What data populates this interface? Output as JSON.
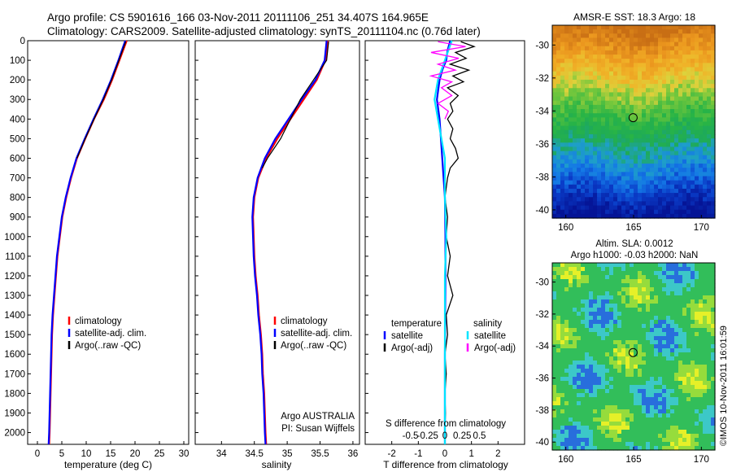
{
  "header": {
    "line1": "Argo profile: CS 5901616_166 03-Nov-2011 20111106_251 34.407S 164.965E",
    "line2": "Climatology: CARS2009. Satellite-adjusted climatology: synTS_20111104.nc (0.76d later)"
  },
  "colors": {
    "climatology": "#ff0000",
    "satellite": "#0000ff",
    "argo": "#000000",
    "salinity_satellite": "#00e5ff",
    "salinity_argo": "#ff00ff"
  },
  "chart_data": [
    {
      "type": "line",
      "id": "temperature",
      "xlabel": "temperature (deg C)",
      "ylabel": "",
      "xlim": [
        -2,
        31
      ],
      "ylim": [
        2060,
        0
      ],
      "xticks": [
        0,
        5,
        10,
        15,
        20,
        25,
        30
      ],
      "yticks": [
        0,
        100,
        200,
        300,
        400,
        500,
        600,
        700,
        800,
        900,
        1000,
        1100,
        1200,
        1300,
        1400,
        1500,
        1600,
        1700,
        1800,
        1900,
        2000
      ],
      "legend": [
        "climatology",
        "satellite-adj. clim.",
        "Argo(..raw -QC)"
      ],
      "legend_position": "bottom-center",
      "series": [
        {
          "name": "climatology",
          "depth": [
            0,
            100,
            200,
            300,
            400,
            500,
            600,
            700,
            800,
            900,
            1000,
            1100,
            1200,
            1300,
            1400,
            1500,
            1600,
            1700,
            1800,
            1900,
            2000,
            2060
          ],
          "values": [
            18.3,
            16.8,
            15.3,
            13.6,
            11.6,
            9.8,
            8.1,
            6.9,
            5.9,
            5.1,
            4.6,
            4.1,
            3.8,
            3.5,
            3.2,
            3.0,
            2.9,
            2.8,
            2.7,
            2.6,
            2.5,
            2.4
          ]
        },
        {
          "name": "satellite-adj. clim.",
          "depth": [
            0,
            100,
            200,
            300,
            400,
            500,
            600,
            700,
            800,
            900,
            1000,
            1100,
            1200,
            1300,
            1400,
            1500,
            1600,
            1700,
            1800,
            1900,
            2000,
            2060
          ],
          "values": [
            18.0,
            16.6,
            15.1,
            13.4,
            11.5,
            9.7,
            8.0,
            6.8,
            5.8,
            5.0,
            4.5,
            4.0,
            3.7,
            3.4,
            3.1,
            2.9,
            2.8,
            2.7,
            2.6,
            2.5,
            2.4,
            2.3
          ]
        },
        {
          "name": "Argo(..raw -QC)",
          "depth": [
            5,
            100,
            200,
            300,
            400,
            500,
            600
          ],
          "values": [
            18.1,
            16.7,
            15.2,
            13.5,
            11.6,
            9.8,
            8.1
          ]
        }
      ]
    },
    {
      "type": "line",
      "id": "salinity",
      "xlabel": "salinity",
      "ylabel": "",
      "xlim": [
        33.6,
        36.1
      ],
      "ylim": [
        2060,
        0
      ],
      "xticks": [
        34,
        34.5,
        35,
        35.5,
        36
      ],
      "legend": [
        "climatology",
        "satellite-adj. clim.",
        "Argo(..raw -QC)"
      ],
      "legend_position": "bottom-center",
      "annotation": [
        "Argo AUSTRALIA",
        "PI: Susan Wijffels"
      ],
      "series": [
        {
          "name": "climatology",
          "depth": [
            0,
            100,
            200,
            300,
            400,
            500,
            600,
            700,
            800,
            900,
            1000,
            1100,
            1200,
            1300,
            1400,
            1500,
            1600,
            1700,
            1800,
            1900,
            2000,
            2060
          ],
          "values": [
            35.62,
            35.58,
            35.45,
            35.25,
            35.05,
            34.85,
            34.68,
            34.56,
            34.5,
            34.48,
            34.49,
            34.5,
            34.52,
            34.55,
            34.57,
            34.6,
            34.62,
            34.63,
            34.65,
            34.66,
            34.67,
            34.68
          ]
        },
        {
          "name": "satellite-adj. clim.",
          "depth": [
            0,
            100,
            200,
            300,
            400,
            500,
            600,
            700,
            800,
            900,
            1000,
            1100,
            1200,
            1300,
            1400,
            1500,
            1600,
            1700,
            1800,
            1900,
            2000,
            2060
          ],
          "values": [
            35.6,
            35.57,
            35.43,
            35.22,
            35.02,
            34.82,
            34.66,
            34.55,
            34.49,
            34.47,
            34.48,
            34.49,
            34.51,
            34.54,
            34.56,
            34.59,
            34.61,
            34.62,
            34.64,
            34.65,
            34.66,
            34.67
          ]
        },
        {
          "name": "Argo(..raw -QC)",
          "depth": [
            5,
            100,
            200,
            300,
            400,
            500,
            600,
            650
          ],
          "values": [
            35.63,
            35.6,
            35.4,
            35.2,
            35.05,
            34.9,
            34.7,
            34.62
          ]
        }
      ]
    },
    {
      "type": "line",
      "id": "difference",
      "xlabel": "T difference from climatology",
      "xlabel_top": "S difference from climatology",
      "xlim": [
        -3,
        3
      ],
      "ylim": [
        2060,
        0
      ],
      "xticks": [
        -2,
        -1,
        0,
        1,
        2
      ],
      "xticks_s": [
        -0.5,
        -0.25,
        0,
        0.25,
        0.5
      ],
      "legend_titles": [
        "temperature",
        "salinity"
      ],
      "legend": [
        "satellite",
        "Argo(-adj)",
        "satellite",
        "Argo(-adj)"
      ],
      "series": [
        {
          "name": "temperature satellite",
          "depth": [
            0,
            50,
            100,
            150,
            200,
            300,
            400,
            500,
            600,
            700,
            800,
            1000,
            1200,
            1400,
            1600,
            1800,
            2000,
            2060
          ],
          "values": [
            0.2,
            0.1,
            0.05,
            -0.1,
            -0.2,
            -0.3,
            -0.2,
            -0.15,
            -0.1,
            -0.05,
            0.0,
            0.02,
            0.02,
            0.01,
            0.0,
            0.0,
            0.0,
            0.0
          ]
        },
        {
          "name": "temperature Argo(-adj)",
          "depth": [
            5,
            30,
            60,
            90,
            120,
            150,
            180,
            210,
            240,
            280,
            320,
            360,
            400,
            450,
            500,
            550,
            600,
            650,
            700,
            800,
            900,
            1000,
            1100,
            1200,
            1300,
            1400,
            1500,
            1600,
            1700,
            1800,
            1900,
            2000
          ],
          "values": [
            0.6,
            1.1,
            0.4,
            0.8,
            0.2,
            0.9,
            0.3,
            0.7,
            0.1,
            0.5,
            0.2,
            0.3,
            0.1,
            0.3,
            0.2,
            0.4,
            0.5,
            0.2,
            0.1,
            0.0,
            0.1,
            0.05,
            0.2,
            0.1,
            0.3,
            0.05,
            0.1,
            0.0,
            0.05,
            0.0,
            0.02,
            0.0
          ]
        },
        {
          "name": "salinity satellite",
          "depth": [
            0,
            50,
            100,
            150,
            200,
            300,
            400,
            500,
            600,
            800,
            1000,
            1200,
            1400,
            1600,
            1800,
            2000,
            2060
          ],
          "values": [
            0.1,
            0.05,
            0.0,
            -0.05,
            -0.1,
            -0.15,
            -0.1,
            -0.05,
            0.0,
            0.0,
            0.02,
            0.0,
            0.0,
            0.0,
            0.0,
            0.0,
            0.0
          ]
        },
        {
          "name": "salinity Argo(-adj)",
          "depth": [
            5,
            30,
            60,
            90,
            120,
            150,
            180,
            210,
            240,
            280,
            320,
            360,
            400
          ],
          "values": [
            -0.1,
            0.3,
            -0.2,
            0.2,
            -0.1,
            0.15,
            -0.2,
            0.1,
            -0.05,
            0.1,
            -0.1,
            0.05,
            0.0
          ]
        }
      ]
    },
    {
      "type": "heatmap",
      "id": "sst_map",
      "title": "AMSR-E SST: 18.3 Argo: 18",
      "xlim": [
        159,
        171
      ],
      "ylim": [
        -40.5,
        -28.8
      ],
      "xticks": [
        160,
        165,
        170
      ],
      "yticks": [
        -30,
        -32,
        -34,
        -36,
        -38,
        -40
      ],
      "marker": {
        "lon": 164.965,
        "lat": -34.407
      }
    },
    {
      "type": "heatmap",
      "id": "sla_map",
      "title": "Altim. SLA: 0.0012",
      "subtitle": "Argo h1000: -0.03 h2000: NaN",
      "xlim": [
        159,
        171
      ],
      "ylim": [
        -40.5,
        -28.8
      ],
      "xticks": [
        160,
        165,
        170
      ],
      "yticks": [
        -30,
        -32,
        -34,
        -36,
        -38,
        -40
      ],
      "marker": {
        "lon": 164.965,
        "lat": -34.407
      }
    }
  ],
  "footer": {
    "timestamp": "©IMOS 10-Nov-2011 16:01:59"
  }
}
